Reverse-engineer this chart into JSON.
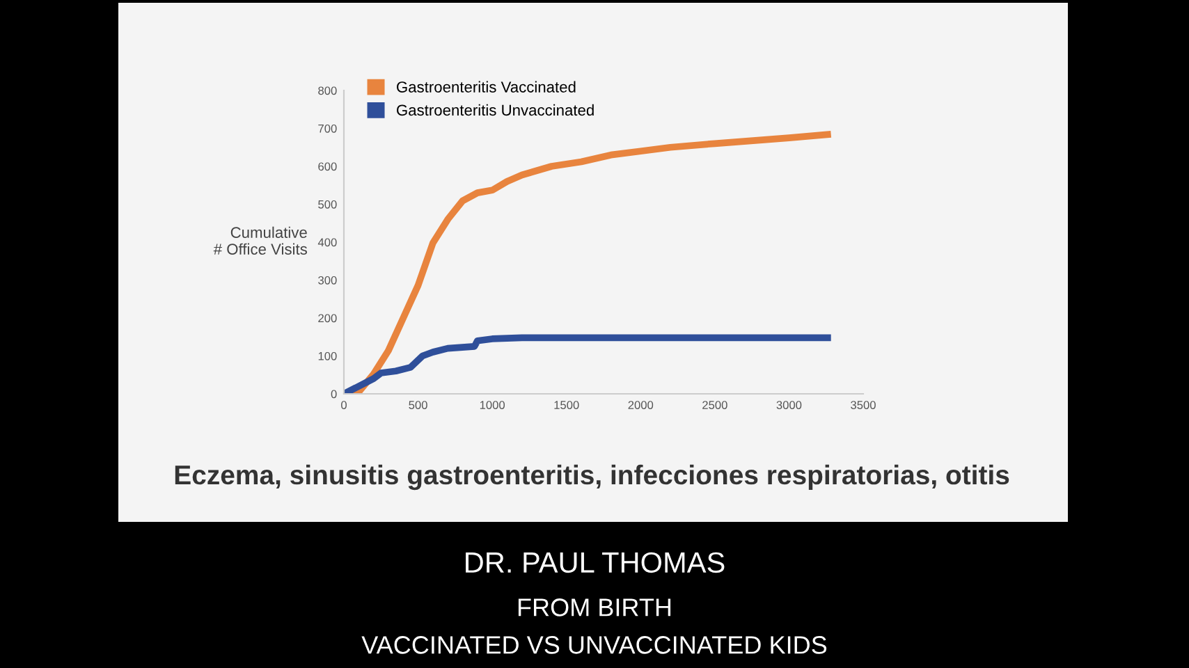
{
  "chart_data": {
    "type": "line",
    "ylabel": "Cumulative\n# Office Visits",
    "xlim": [
      0,
      3500
    ],
    "xticks": [
      0,
      500,
      1000,
      1500,
      2000,
      2500,
      3000,
      3500
    ],
    "ylim": [
      0,
      800
    ],
    "yticks": [
      0,
      100,
      200,
      300,
      400,
      500,
      600,
      700,
      800
    ],
    "grid": false,
    "legend": "top left",
    "marker": "none",
    "line_style": "solid",
    "series": [
      {
        "name": "Gastroenteritis Vaccinated",
        "color": "#e8843e",
        "x": [
          0,
          100,
          200,
          300,
          400,
          500,
          600,
          700,
          800,
          900,
          1000,
          1100,
          1200,
          1400,
          1600,
          1800,
          2000,
          2200,
          2500,
          3000,
          3260
        ],
        "values": [
          0,
          5,
          52,
          114,
          200,
          286,
          398,
          460,
          509,
          530,
          537,
          560,
          577,
          600,
          612,
          630,
          640,
          650,
          660,
          675,
          684
        ]
      },
      {
        "name": "Gastroenteritis Unvaccinated",
        "color": "#2f4f9a",
        "x": [
          0,
          200,
          250,
          350,
          450,
          530,
          600,
          700,
          880,
          900,
          1000,
          1200,
          3260
        ],
        "values": [
          0,
          40,
          55,
          60,
          70,
          100,
          110,
          120,
          125,
          140,
          145,
          148,
          148
        ]
      }
    ],
    "annotations": [
      "Eczema, sinusitis gastroenteritis, infecciones respiratorias, otitis",
      "DR. PAUL THOMAS",
      "FROM BIRTH",
      "VACCINATED VS UNVACCINATED KIDS"
    ]
  }
}
